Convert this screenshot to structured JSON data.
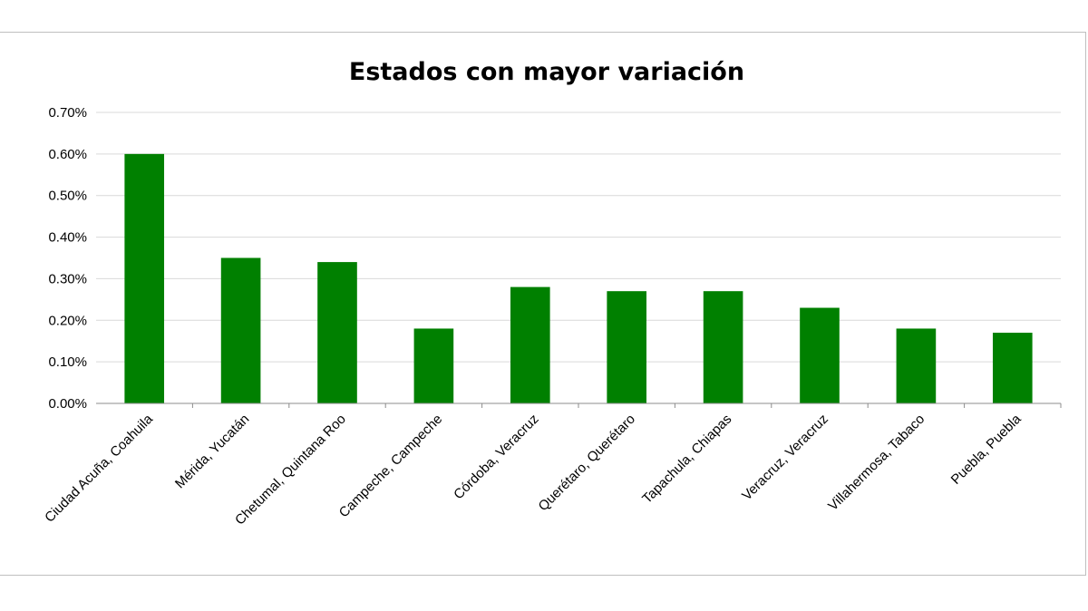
{
  "chart_data": {
    "type": "bar",
    "title": "Estados con mayor variación",
    "xlabel": "",
    "ylabel": "",
    "categories": [
      "Ciudad Acuña, Coahuila",
      "Mérida, Yucatán",
      "Chetumal, Quintana Roo",
      "Campeche, Campeche",
      "Córdoba, Veracruz",
      "Querétaro, Querétaro",
      "Tapachula, Chiapas",
      "Veracruz, Veracruz",
      "Villahermosa, Tabaco",
      "Puebla, Puebla"
    ],
    "values": [
      0.6,
      0.35,
      0.34,
      0.18,
      0.28,
      0.27,
      0.27,
      0.23,
      0.18,
      0.17
    ],
    "ylim": [
      0,
      0.7
    ],
    "yticks": [
      "0.00%",
      "0.10%",
      "0.20%",
      "0.30%",
      "0.40%",
      "0.50%",
      "0.60%",
      "0.70%"
    ],
    "grid": true,
    "legend": "none",
    "bar_color": "#008000"
  }
}
